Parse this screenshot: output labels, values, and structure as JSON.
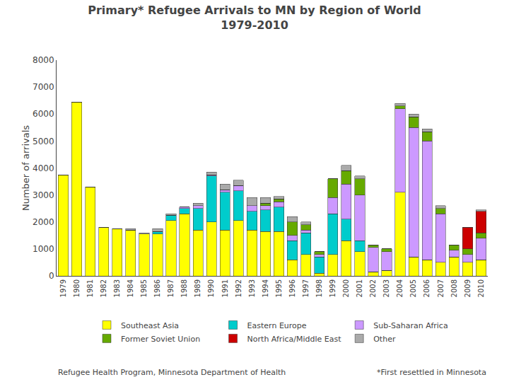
{
  "chart_data": {
    "type": "bar",
    "stacked": true,
    "title": "Primary* Refugee Arrivals to MN by Region of World",
    "subtitle": "1979-2010",
    "y_label": "Number of arrivals",
    "categories": [
      "1979",
      "1980",
      "1981",
      "1982",
      "1983",
      "1984",
      "1985",
      "1986",
      "1987",
      "1988",
      "1989",
      "1990",
      "1991",
      "1992",
      "1993",
      "1994",
      "1995",
      "1996",
      "1997",
      "1998",
      "1999",
      "2000",
      "2001",
      "2002",
      "2003",
      "2004",
      "2005",
      "2006",
      "2007",
      "2008",
      "2009",
      "2010"
    ],
    "series": [
      {
        "name": "Southeast Asia",
        "color": "#FFFF00",
        "values": [
          3750,
          6450,
          3300,
          1800,
          1750,
          1700,
          1550,
          1550,
          2050,
          2300,
          1700,
          2000,
          1700,
          2050,
          1700,
          1650,
          1650,
          600,
          800,
          100,
          800,
          1300,
          900,
          150,
          200,
          3100,
          700,
          600,
          500,
          700,
          500,
          600
        ]
      },
      {
        "name": "Eastern Europe",
        "color": "#00CCCC",
        "values": [
          0,
          0,
          0,
          0,
          0,
          0,
          0,
          100,
          200,
          200,
          800,
          1700,
          1400,
          1100,
          700,
          800,
          900,
          700,
          800,
          600,
          1500,
          800,
          400,
          0,
          0,
          0,
          0,
          0,
          0,
          0,
          0,
          0
        ]
      },
      {
        "name": "Sub-Saharan Africa",
        "color": "#CC99FF",
        "values": [
          0,
          0,
          0,
          0,
          0,
          0,
          0,
          0,
          0,
          50,
          100,
          50,
          100,
          200,
          200,
          150,
          200,
          200,
          100,
          100,
          600,
          1300,
          1700,
          900,
          700,
          3100,
          4800,
          4400,
          1800,
          250,
          300,
          800
        ]
      },
      {
        "name": "Former Soviet Union",
        "color": "#66AA00",
        "values": [
          0,
          0,
          0,
          0,
          0,
          0,
          0,
          0,
          0,
          0,
          0,
          0,
          0,
          0,
          0,
          100,
          100,
          500,
          200,
          100,
          700,
          500,
          600,
          100,
          100,
          100,
          400,
          350,
          200,
          200,
          200,
          200
        ]
      },
      {
        "name": "North Africa/Middle East",
        "color": "#CC0000",
        "values": [
          0,
          0,
          0,
          0,
          0,
          0,
          0,
          0,
          0,
          0,
          0,
          0,
          0,
          0,
          0,
          0,
          0,
          0,
          0,
          0,
          0,
          0,
          0,
          0,
          0,
          0,
          0,
          0,
          0,
          0,
          800,
          800
        ]
      },
      {
        "name": "Other",
        "color": "#AAAAAA",
        "values": [
          0,
          0,
          0,
          0,
          0,
          50,
          50,
          100,
          50,
          0,
          100,
          100,
          200,
          200,
          300,
          200,
          100,
          200,
          100,
          0,
          0,
          200,
          100,
          0,
          0,
          100,
          100,
          100,
          100,
          0,
          0,
          50
        ]
      }
    ],
    "ylim": [
      0,
      8000
    ],
    "yticks": [
      0,
      1000,
      2000,
      3000,
      4000,
      5000,
      6000,
      7000,
      8000
    ],
    "grid": false,
    "legend": "bottom",
    "annotations": [
      "Refugee Health Program, Minnesota Department of Health",
      "*First resettled in Minnesota"
    ]
  }
}
